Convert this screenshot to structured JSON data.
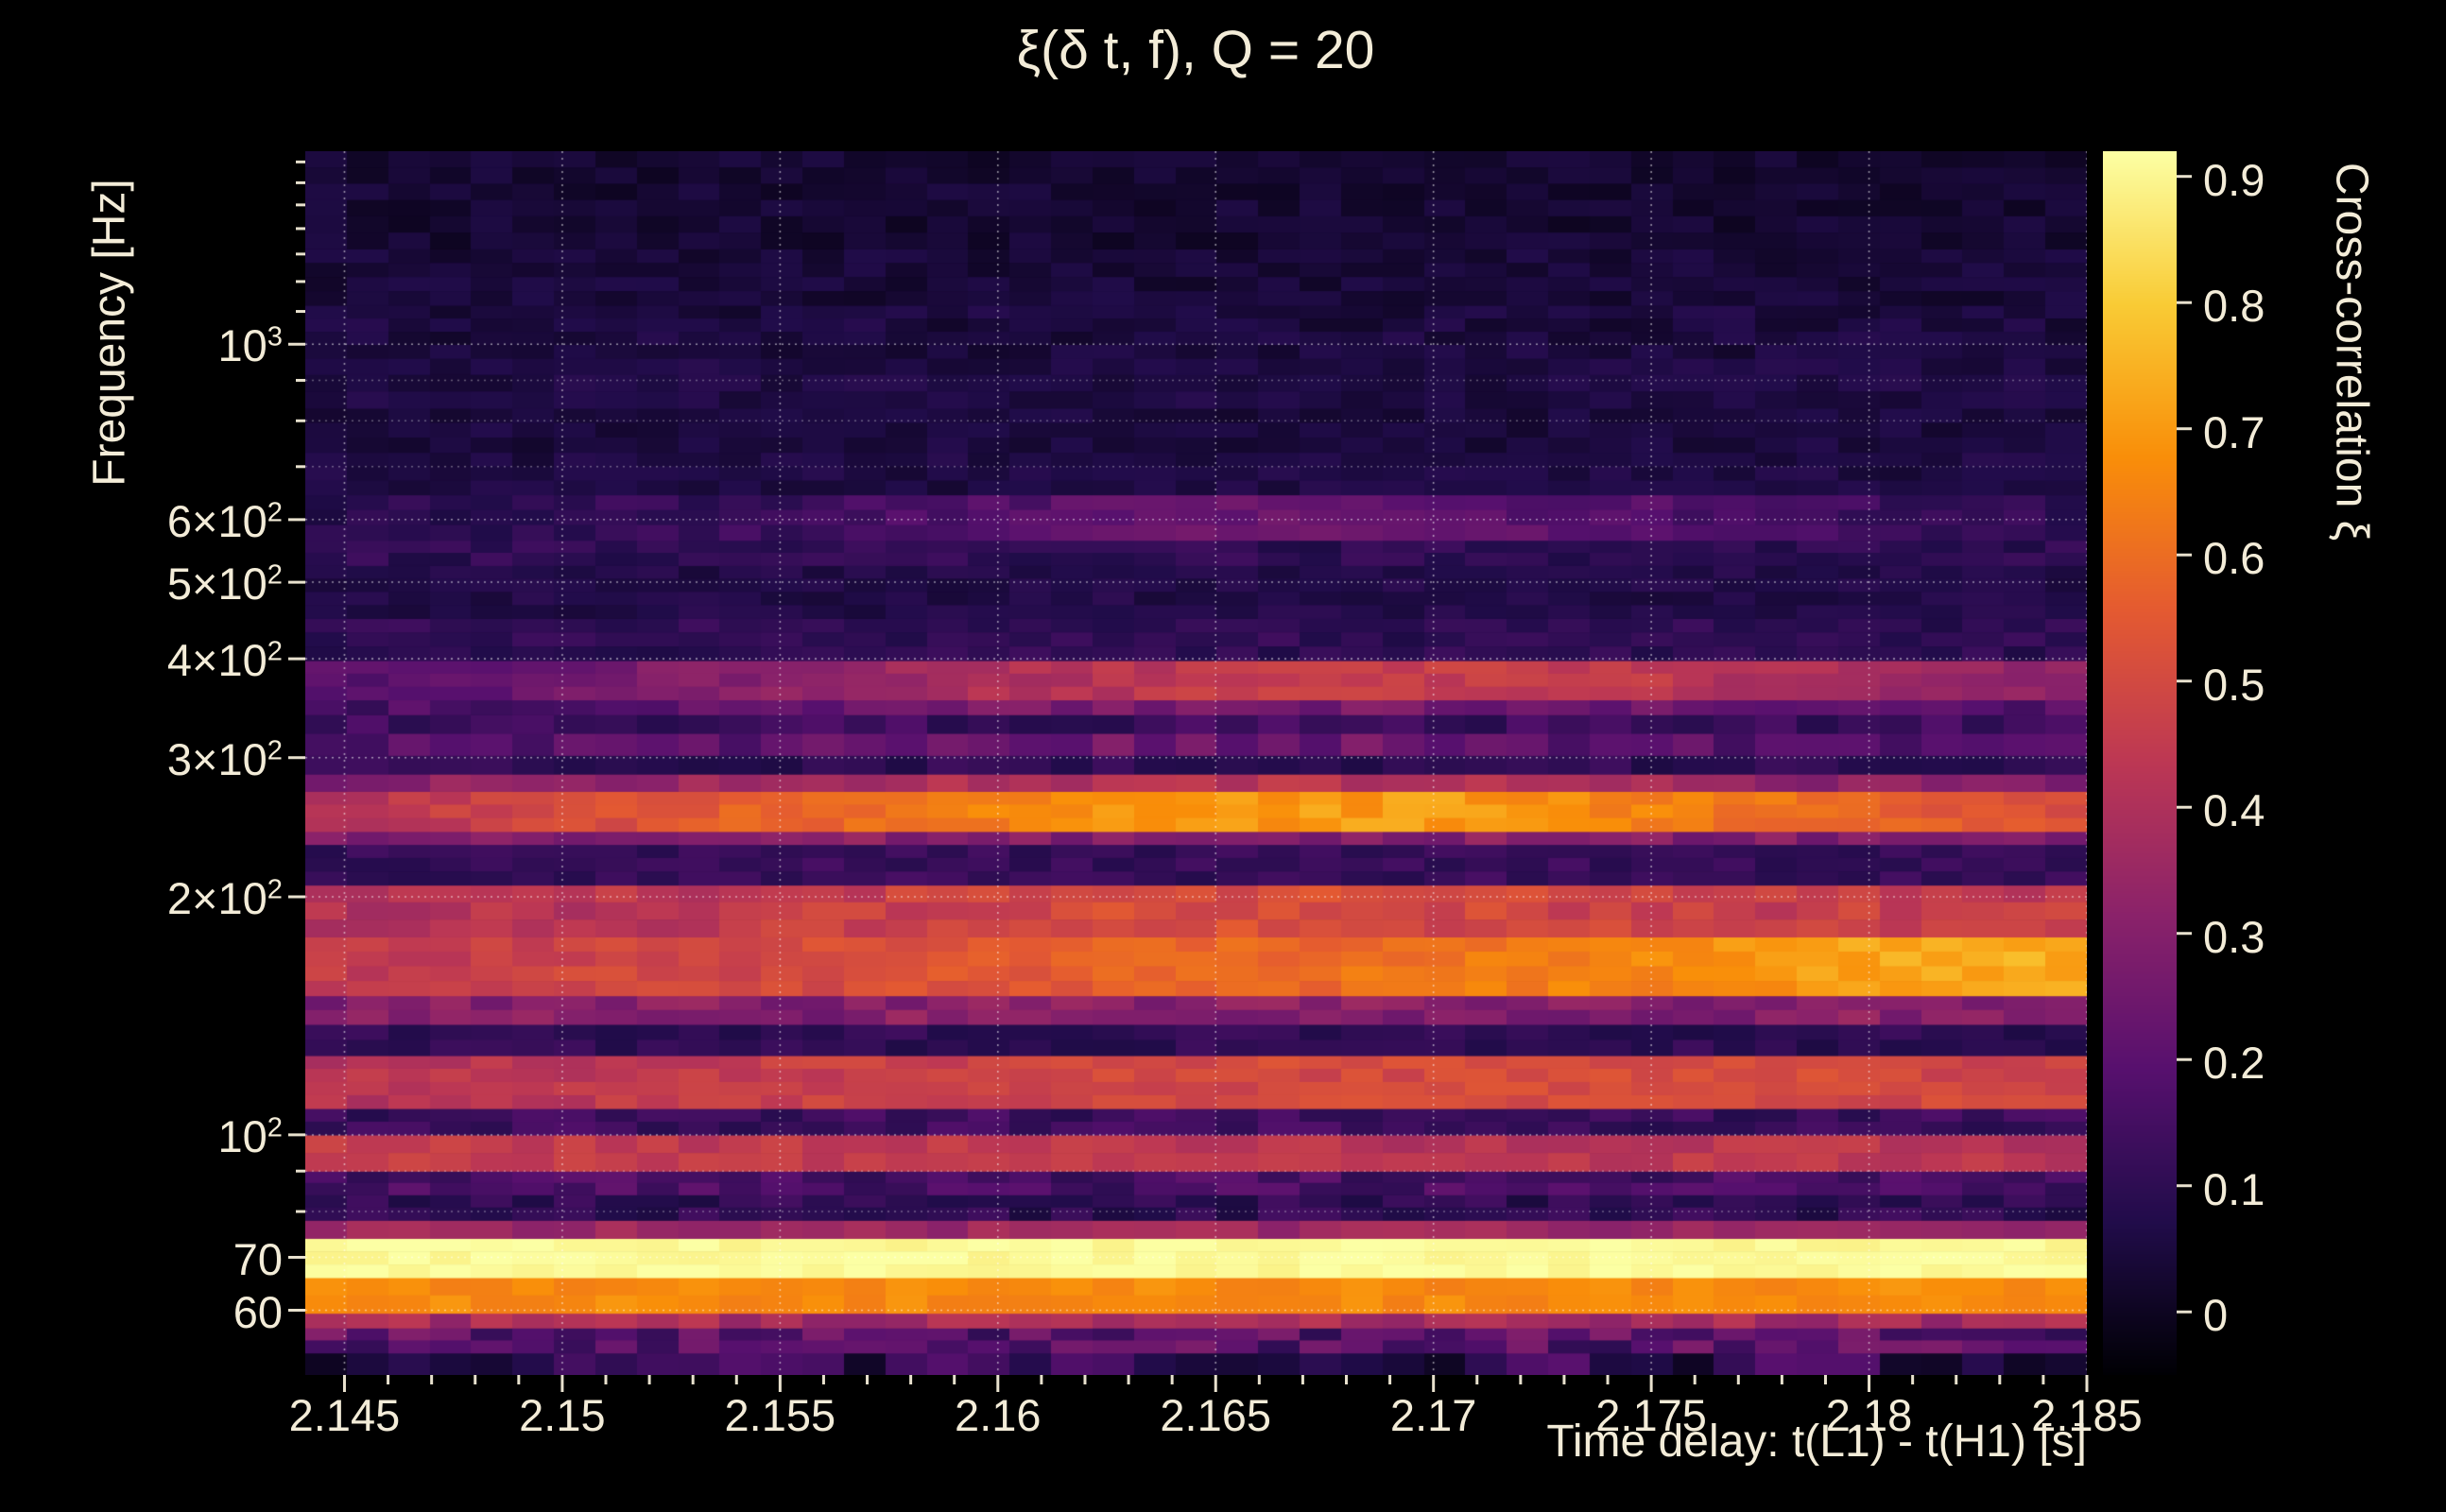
{
  "chart_data": {
    "type": "heatmap",
    "title": "ξ(δ t, f), Q = 20",
    "xlabel": "Time delay: t(L1) - t(H1) [s]",
    "ylabel": "Frequency [Hz]",
    "colorbar_label": "Cross-correlation ξ",
    "x_range": [
      2.1441,
      2.185
    ],
    "y_range_hz": [
      49.7,
      1754
    ],
    "y_scale": "log",
    "value_range": [
      -0.05,
      0.92
    ],
    "x_minor_step": 0.001,
    "x_ticks": [
      {
        "value": 2.145,
        "label": "2.145"
      },
      {
        "value": 2.15,
        "label": "2.15"
      },
      {
        "value": 2.155,
        "label": "2.155"
      },
      {
        "value": 2.16,
        "label": "2.16"
      },
      {
        "value": 2.165,
        "label": "2.165"
      },
      {
        "value": 2.17,
        "label": "2.17"
      },
      {
        "value": 2.175,
        "label": "2.175"
      },
      {
        "value": 2.18,
        "label": "2.18"
      },
      {
        "value": 2.185,
        "label": "2.185"
      }
    ],
    "y_ticks": [
      {
        "f": 1000,
        "base": "10",
        "exp": "3"
      },
      {
        "f": 600,
        "base": "6×10",
        "exp": "2"
      },
      {
        "f": 500,
        "base": "5×10",
        "exp": "2"
      },
      {
        "f": 400,
        "base": "4×10",
        "exp": "2"
      },
      {
        "f": 300,
        "base": "3×10",
        "exp": "2"
      },
      {
        "f": 200,
        "base": "2×10",
        "exp": "2"
      },
      {
        "f": 100,
        "base": "10",
        "exp": "2"
      },
      {
        "f": 70,
        "base": "70",
        "exp": ""
      },
      {
        "f": 60,
        "base": "60",
        "exp": ""
      }
    ],
    "y_minor_ticks": [
      80,
      90,
      700,
      800,
      900,
      1100,
      1200,
      1300,
      1400,
      1500,
      1600,
      1700
    ],
    "y_grid_minor": [
      80,
      90,
      700,
      800,
      900
    ],
    "colorbar_ticks": [
      {
        "v": 0,
        "label": "0"
      },
      {
        "v": 0.1,
        "label": "0.1"
      },
      {
        "v": 0.2,
        "label": "0.2"
      },
      {
        "v": 0.3,
        "label": "0.3"
      },
      {
        "v": 0.4,
        "label": "0.4"
      },
      {
        "v": 0.5,
        "label": "0.5"
      },
      {
        "v": 0.6,
        "label": "0.6"
      },
      {
        "v": 0.7,
        "label": "0.7"
      },
      {
        "v": 0.8,
        "label": "0.8"
      },
      {
        "v": 0.9,
        "label": "0.9"
      }
    ],
    "colormap": [
      [
        0,
        "#000004"
      ],
      [
        0.125,
        "#210c4a"
      ],
      [
        0.25,
        "#57106e"
      ],
      [
        0.375,
        "#8a226a"
      ],
      [
        0.5,
        "#bc3754"
      ],
      [
        0.625,
        "#e45a31"
      ],
      [
        0.75,
        "#f98e09"
      ],
      [
        0.875,
        "#f9cb35"
      ],
      [
        1,
        "#fcffa4"
      ]
    ],
    "time_samples": [
      2.145,
      2.15,
      2.155,
      2.16,
      2.165,
      2.17,
      2.175,
      2.18,
      2.185
    ],
    "bands": [
      {
        "f": [
          49.7,
          53
        ],
        "v": 0.1,
        "j": 0.1
      },
      {
        "f": [
          53,
          57
        ],
        "v": 0.2,
        "j": 0.1
      },
      {
        "f": [
          57,
          59.5
        ],
        "v": 0.38,
        "j": 0.06
      },
      {
        "f": [
          59.5,
          66
        ],
        "v": 0.67,
        "j": 0.03
      },
      {
        "f": [
          66,
          74
        ],
        "v": 0.91,
        "j": 0.02
      },
      {
        "f": [
          74,
          78
        ],
        "v": 0.36,
        "j": 0.05
      },
      {
        "f": [
          78,
          84
        ],
        "v": 0.1,
        "j": 0.05
      },
      {
        "f": [
          84,
          90
        ],
        "v": 0.16,
        "j": 0.06
      },
      {
        "f": [
          90,
          100
        ],
        "v": [
          0.45,
          0.46,
          0.44,
          0.45,
          0.43,
          0.42,
          0.44,
          0.43,
          0.42
        ],
        "j": 0.04
      },
      {
        "f": [
          100,
          108
        ],
        "v": 0.13,
        "j": 0.05
      },
      {
        "f": [
          108,
          126
        ],
        "v": [
          0.42,
          0.44,
          0.46,
          0.48,
          0.5,
          0.5,
          0.52,
          0.5,
          0.48
        ],
        "j": 0.04
      },
      {
        "f": [
          126,
          138
        ],
        "v": 0.1,
        "j": 0.04
      },
      {
        "f": [
          138,
          150
        ],
        "v": 0.3,
        "j": 0.06
      },
      {
        "f": [
          150,
          178
        ],
        "v": [
          0.45,
          0.48,
          0.5,
          0.55,
          0.58,
          0.62,
          0.66,
          0.72,
          0.74
        ],
        "j": 0.04
      },
      {
        "f": [
          178,
          207
        ],
        "v": [
          0.4,
          0.42,
          0.45,
          0.5,
          0.52,
          0.5,
          0.48,
          0.46,
          0.45
        ],
        "j": 0.05
      },
      {
        "f": [
          207,
          233
        ],
        "v": 0.12,
        "j": 0.04
      },
      {
        "f": [
          233,
          242
        ],
        "v": 0.3,
        "j": 0.06
      },
      {
        "f": [
          242,
          272
        ],
        "v": [
          0.42,
          0.5,
          0.58,
          0.65,
          0.7,
          0.7,
          0.65,
          0.58,
          0.52
        ],
        "j": 0.04
      },
      {
        "f": [
          272,
          286
        ],
        "v": [
          0.3,
          0.33,
          0.36,
          0.4,
          0.42,
          0.4,
          0.36,
          0.32,
          0.3
        ],
        "j": 0.05
      },
      {
        "f": [
          286,
          302
        ],
        "v": 0.1,
        "j": 0.04
      },
      {
        "f": [
          302,
          322
        ],
        "v": [
          0.18,
          0.2,
          0.22,
          0.25,
          0.25,
          0.23,
          0.2,
          0.18,
          0.17
        ],
        "j": 0.06
      },
      {
        "f": [
          322,
          340
        ],
        "v": 0.13,
        "j": 0.05
      },
      {
        "f": [
          340,
          355
        ],
        "v": [
          0.16,
          0.18,
          0.22,
          0.26,
          0.28,
          0.26,
          0.24,
          0.2,
          0.18
        ],
        "j": 0.05
      },
      {
        "f": [
          355,
          398
        ],
        "v": [
          0.2,
          0.25,
          0.32,
          0.4,
          0.45,
          0.46,
          0.44,
          0.38,
          0.3
        ],
        "j": 0.04
      },
      {
        "f": [
          398,
          450
        ],
        "v": 0.1,
        "j": 0.04
      },
      {
        "f": [
          450,
          525
        ],
        "v": 0.07,
        "j": 0.03
      },
      {
        "f": [
          525,
          565
        ],
        "v": 0.1,
        "j": 0.04
      },
      {
        "f": [
          565,
          645
        ],
        "v": [
          0.08,
          0.1,
          0.13,
          0.18,
          0.23,
          0.22,
          0.18,
          0.13,
          0.1
        ],
        "j": 0.04
      },
      {
        "f": [
          645,
          730
        ],
        "v": 0.06,
        "j": 0.03
      },
      {
        "f": [
          730,
          830
        ],
        "v": 0.05,
        "j": 0.03
      },
      {
        "f": [
          830,
          960
        ],
        "v": 0.06,
        "j": 0.03
      },
      {
        "f": [
          960,
          1120
        ],
        "v": 0.05,
        "j": 0.035
      },
      {
        "f": [
          1120,
          1320
        ],
        "v": 0.04,
        "j": 0.03
      },
      {
        "f": [
          1320,
          1754
        ],
        "v": 0.03,
        "j": 0.03
      }
    ]
  }
}
